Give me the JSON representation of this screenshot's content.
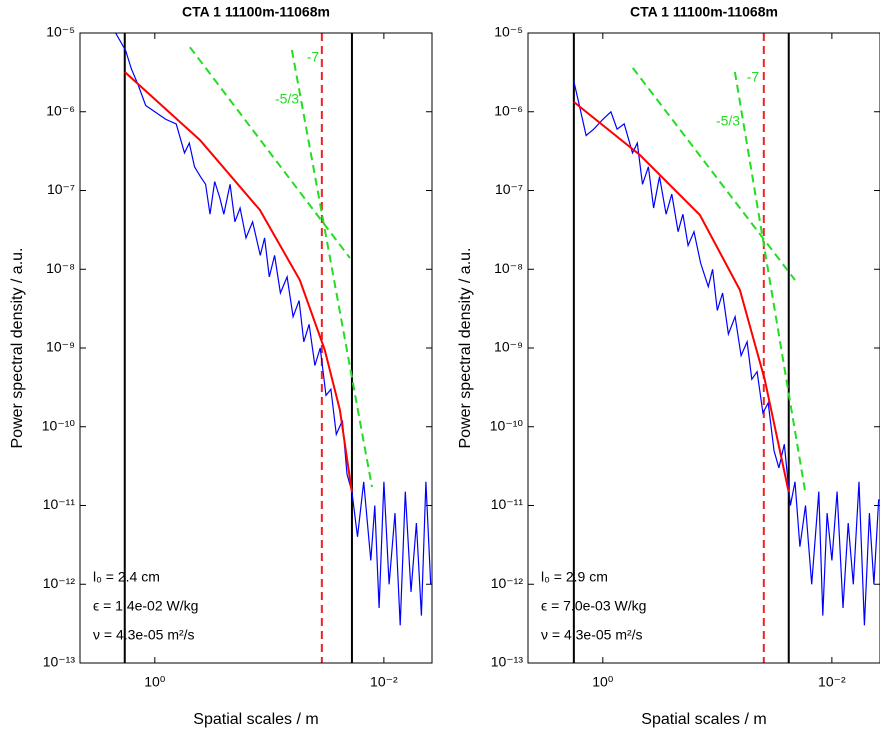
{
  "chart_data": [
    {
      "type": "line",
      "title": "CTA 1 11100m-11068m",
      "xlabel": "Spatial scales / m",
      "ylabel": "Power spectral density / a.u.",
      "xscale": "log",
      "yscale": "log",
      "xlim": [
        4.5,
        0.0038
      ],
      "ylim": [
        1e-13,
        1e-05
      ],
      "xticks": [
        {
          "value": 1,
          "label": "10⁰"
        },
        {
          "value": 0.01,
          "label": "10⁻²"
        }
      ],
      "yticks": [
        {
          "value": 1e-13,
          "label": "10⁻¹³"
        },
        {
          "value": 1e-12,
          "label": "10⁻¹²"
        },
        {
          "value": 1e-11,
          "label": "10⁻¹¹"
        },
        {
          "value": 1e-10,
          "label": "10⁻¹⁰"
        },
        {
          "value": 1e-09,
          "label": "10⁻⁹"
        },
        {
          "value": 1e-08,
          "label": "10⁻⁸"
        },
        {
          "value": 1e-07,
          "label": "10⁻⁷"
        },
        {
          "value": 1e-06,
          "label": "10⁻⁶"
        },
        {
          "value": 1e-05,
          "label": "10⁻⁵"
        }
      ],
      "series": [
        {
          "color": "#0000ff",
          "x": [
            2.2,
            1.8,
            1.6,
            1.4,
            1.2,
            1.0,
            0.8,
            0.65,
            0.55,
            0.5,
            0.45,
            0.4,
            0.36,
            0.33,
            0.3,
            0.27,
            0.25,
            0.22,
            0.2,
            0.18,
            0.16,
            0.14,
            0.12,
            0.11,
            0.1,
            0.09,
            0.08,
            0.07,
            0.062,
            0.055,
            0.05,
            0.045,
            0.04,
            0.036,
            0.032,
            0.029,
            0.026,
            0.023,
            0.021,
            0.019,
            0.017,
            0.015,
            0.013,
            0.012,
            0.011,
            0.01,
            0.009,
            0.008,
            0.0072,
            0.0065,
            0.0058,
            0.0052,
            0.0047,
            0.0043,
            0.0039
          ],
          "values": [
            1e-05,
            6e-06,
            3.5e-06,
            2.2e-06,
            1.2e-06,
            1e-06,
            8e-07,
            7e-07,
            3e-07,
            4e-07,
            2e-07,
            1.5e-07,
            1.2e-07,
            5e-08,
            1.3e-07,
            8e-08,
            5e-08,
            1.2e-07,
            4e-08,
            6e-08,
            2.5e-08,
            4e-08,
            1.5e-08,
            2.5e-08,
            8e-09,
            1.5e-08,
            5e-09,
            8e-09,
            2.5e-09,
            4e-09,
            1.2e-09,
            2e-09,
            6e-10,
            1e-09,
            2.5e-10,
            3e-10,
            8e-11,
            1.2e-10,
            2.5e-11,
            1.5e-11,
            4e-12,
            2e-11,
            2e-12,
            1e-11,
            5e-13,
            2e-11,
            1e-12,
            8e-12,
            3e-13,
            1.5e-11,
            8e-13,
            6e-12,
            4e-13,
            2e-11,
            1e-12
          ]
        },
        {
          "color": "#ff0000",
          "x": [
            1.83,
            0.404,
            0.121,
            0.0542,
            0.0328,
            0.0242,
            0.019
          ],
          "values": [
            3.2e-06,
            4.38e-07,
            5.65e-08,
            7.3e-09,
            9.4e-10,
            1.63e-10,
            1.48e-11
          ]
        },
        {
          "color": "#22dd22",
          "dashed": true,
          "label": "-5/3",
          "x": [
            0.494,
            0.0198
          ],
          "values": [
            6.6e-06,
            1.39e-08
          ]
        },
        {
          "color": "#22dd22",
          "dashed": true,
          "label": "-7",
          "x": [
            0.0636,
            0.0127
          ],
          "values": [
            6.08e-06,
            1.72e-11
          ]
        }
      ],
      "vlines": [
        {
          "x": 1.83,
          "color": "#000000"
        },
        {
          "x": 0.019,
          "color": "#000000"
        },
        {
          "x": 0.0348,
          "color": "#ee2222",
          "dashed": true
        }
      ],
      "annotations": [
        "l₀ = 2.4 cm",
        "ϵ = 1.4e-02 W/kg",
        "ν = 4.3e-05 m²/s"
      ]
    },
    {
      "type": "line",
      "title": "CTA 1 11100m-11068m",
      "xlabel": "Spatial scales / m",
      "ylabel": "Power spectral density / a.u.",
      "xscale": "log",
      "yscale": "log",
      "xlim": [
        4.5,
        0.0038
      ],
      "ylim": [
        1e-13,
        1e-05
      ],
      "xticks": [
        {
          "value": 1,
          "label": "10⁰"
        },
        {
          "value": 0.01,
          "label": "10⁻²"
        }
      ],
      "yticks": [
        {
          "value": 1e-13,
          "label": "10⁻¹³"
        },
        {
          "value": 1e-12,
          "label": "10⁻¹²"
        },
        {
          "value": 1e-11,
          "label": "10⁻¹¹"
        },
        {
          "value": 1e-10,
          "label": "10⁻¹⁰"
        },
        {
          "value": 1e-09,
          "label": "10⁻⁹"
        },
        {
          "value": 1e-08,
          "label": "10⁻⁸"
        },
        {
          "value": 1e-07,
          "label": "10⁻⁷"
        },
        {
          "value": 1e-06,
          "label": "10⁻⁶"
        },
        {
          "value": 1e-05,
          "label": "10⁻⁵"
        }
      ],
      "series": [
        {
          "color": "#0000ff",
          "x": [
            1.8,
            1.6,
            1.4,
            1.2,
            1.0,
            0.85,
            0.75,
            0.65,
            0.55,
            0.5,
            0.45,
            0.4,
            0.36,
            0.32,
            0.28,
            0.25,
            0.22,
            0.2,
            0.18,
            0.16,
            0.14,
            0.12,
            0.11,
            0.1,
            0.09,
            0.08,
            0.07,
            0.062,
            0.055,
            0.05,
            0.045,
            0.04,
            0.036,
            0.032,
            0.029,
            0.026,
            0.023,
            0.021,
            0.019,
            0.017,
            0.015,
            0.013,
            0.012,
            0.011,
            0.01,
            0.009,
            0.008,
            0.0072,
            0.0065,
            0.0058,
            0.0052,
            0.0047,
            0.0043,
            0.0039
          ],
          "values": [
            2.5e-06,
            1.2e-06,
            5e-07,
            6e-07,
            8e-07,
            1e-06,
            6e-07,
            7e-07,
            3e-07,
            4e-07,
            1.2e-07,
            2e-07,
            6e-08,
            1.5e-07,
            5e-08,
            9e-08,
            3e-08,
            5e-08,
            2e-08,
            3e-08,
            1.2e-08,
            6e-09,
            1e-08,
            3e-09,
            5e-09,
            1.5e-09,
            2.5e-09,
            8e-10,
            1.2e-09,
            4e-10,
            5e-10,
            1.5e-10,
            2e-10,
            5e-11,
            3e-11,
            6e-11,
            1e-11,
            2e-11,
            3e-12,
            1e-11,
            1e-12,
            1.5e-11,
            4e-13,
            8e-12,
            2e-12,
            1.5e-11,
            5e-13,
            6e-12,
            1e-12,
            2e-11,
            3e-13,
            8e-12,
            1e-12,
            1.2e-11
          ]
        },
        {
          "color": "#ff0000",
          "x": [
            1.79,
            0.475,
            0.142,
            0.0636,
            0.0385,
            0.0238
          ],
          "values": [
            1.33e-06,
            2.83e-07,
            4.89e-08,
            5.45e-09,
            3.93e-10,
            1.48e-11
          ]
        },
        {
          "color": "#22dd22",
          "dashed": true,
          "label": "-5/3",
          "x": [
            0.547,
            0.021
          ],
          "values": [
            3.6e-06,
            7.3e-09
          ]
        },
        {
          "color": "#22dd22",
          "dashed": true,
          "label": "-7",
          "x": [
            0.0703,
            0.0172
          ],
          "values": [
            3.2e-06,
            1.57e-11
          ]
        }
      ],
      "vlines": [
        {
          "x": 1.79,
          "color": "#000000"
        },
        {
          "x": 0.0238,
          "color": "#000000"
        },
        {
          "x": 0.0393,
          "color": "#ee2222",
          "dashed": true
        }
      ],
      "annotations": [
        "l₀ = 2.9 cm",
        "ϵ = 7.0e-03 W/kg",
        "ν = 4.3e-05 m²/s"
      ]
    }
  ]
}
